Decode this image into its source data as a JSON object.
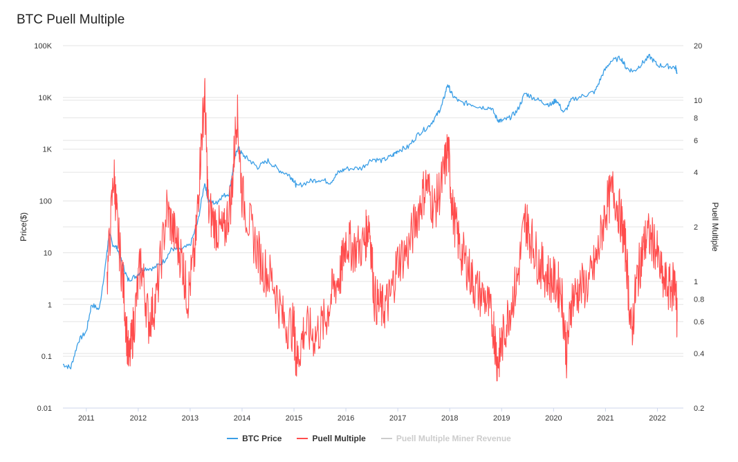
{
  "chart_data": {
    "type": "line",
    "title": "BTC Puell Multiple",
    "x_ticks": [
      "2011",
      "2012",
      "2013",
      "2014",
      "2015",
      "2016",
      "2017",
      "2018",
      "2019",
      "2020",
      "2021",
      "2022"
    ],
    "xlim": [
      2010.55,
      2022.5
    ],
    "y_left": {
      "label": "Price($)",
      "scale": "log",
      "lim": [
        0.01,
        100000
      ],
      "ticks": [
        0.01,
        0.1,
        1,
        10,
        100,
        1000,
        10000,
        100000
      ],
      "tick_labels": [
        "0.01",
        "0.1",
        "1",
        "10",
        "100",
        "1K",
        "10K",
        "100K"
      ]
    },
    "y_right": {
      "label": "Puell Multiple",
      "scale": "log",
      "lim": [
        0.2,
        20
      ],
      "ticks": [
        0.2,
        0.4,
        0.6,
        0.8,
        1,
        2,
        4,
        6,
        8,
        10,
        20
      ],
      "tick_labels": [
        "0.2",
        "0.4",
        "0.6",
        "0.8",
        "1",
        "2",
        "4",
        "6",
        "8",
        "10",
        "20"
      ]
    },
    "series": [
      {
        "name": "BTC Price",
        "color": "#3a9ee6",
        "axis": "left",
        "points": [
          [
            2010.55,
            0.07
          ],
          [
            2010.7,
            0.06
          ],
          [
            2010.85,
            0.2
          ],
          [
            2011.0,
            0.3
          ],
          [
            2011.1,
            1
          ],
          [
            2011.25,
            0.8
          ],
          [
            2011.4,
            10
          ],
          [
            2011.44,
            25
          ],
          [
            2011.5,
            15
          ],
          [
            2011.6,
            12
          ],
          [
            2011.7,
            6
          ],
          [
            2011.8,
            3
          ],
          [
            2011.95,
            3.5
          ],
          [
            2012.1,
            5
          ],
          [
            2012.3,
            5
          ],
          [
            2012.5,
            7
          ],
          [
            2012.65,
            12
          ],
          [
            2012.8,
            11
          ],
          [
            2013.0,
            14
          ],
          [
            2013.15,
            40
          ],
          [
            2013.28,
            230
          ],
          [
            2013.35,
            100
          ],
          [
            2013.5,
            90
          ],
          [
            2013.6,
            120
          ],
          [
            2013.75,
            140
          ],
          [
            2013.85,
            600
          ],
          [
            2013.92,
            1100
          ],
          [
            2014.0,
            800
          ],
          [
            2014.15,
            600
          ],
          [
            2014.3,
            450
          ],
          [
            2014.5,
            600
          ],
          [
            2014.7,
            400
          ],
          [
            2014.9,
            320
          ],
          [
            2015.0,
            250
          ],
          [
            2015.05,
            190
          ],
          [
            2015.3,
            240
          ],
          [
            2015.5,
            260
          ],
          [
            2015.7,
            230
          ],
          [
            2015.85,
            350
          ],
          [
            2016.0,
            420
          ],
          [
            2016.3,
            430
          ],
          [
            2016.5,
            650
          ],
          [
            2016.7,
            600
          ],
          [
            2016.9,
            750
          ],
          [
            2017.0,
            950
          ],
          [
            2017.2,
            1100
          ],
          [
            2017.4,
            2000
          ],
          [
            2017.6,
            2800
          ],
          [
            2017.75,
            4500
          ],
          [
            2017.85,
            7000
          ],
          [
            2017.96,
            18000
          ],
          [
            2018.05,
            11000
          ],
          [
            2018.2,
            8000
          ],
          [
            2018.4,
            7500
          ],
          [
            2018.6,
            6500
          ],
          [
            2018.8,
            6300
          ],
          [
            2018.92,
            3700
          ],
          [
            2019.0,
            3500
          ],
          [
            2019.15,
            4000
          ],
          [
            2019.3,
            5500
          ],
          [
            2019.45,
            12000
          ],
          [
            2019.6,
            10000
          ],
          [
            2019.8,
            8000
          ],
          [
            2019.95,
            7200
          ],
          [
            2020.05,
            9000
          ],
          [
            2020.2,
            5000
          ],
          [
            2020.35,
            9000
          ],
          [
            2020.6,
            11000
          ],
          [
            2020.8,
            13000
          ],
          [
            2020.95,
            29000
          ],
          [
            2021.1,
            50000
          ],
          [
            2021.3,
            58000
          ],
          [
            2021.4,
            37000
          ],
          [
            2021.55,
            32000
          ],
          [
            2021.7,
            45000
          ],
          [
            2021.85,
            62000
          ],
          [
            2022.0,
            42000
          ],
          [
            2022.2,
            40000
          ],
          [
            2022.35,
            38000
          ],
          [
            2022.38,
            30000
          ]
        ]
      },
      {
        "name": "Puell Multiple",
        "color": "#ff4d4d",
        "axis": "right",
        "points": [
          [
            2011.4,
            1.0
          ],
          [
            2011.53,
            4.0
          ],
          [
            2011.6,
            2.0
          ],
          [
            2011.72,
            0.9
          ],
          [
            2011.82,
            0.35
          ],
          [
            2011.92,
            0.6
          ],
          [
            2012.05,
            1.3
          ],
          [
            2012.2,
            0.6
          ],
          [
            2012.35,
            0.8
          ],
          [
            2012.55,
            2.5
          ],
          [
            2012.7,
            1.8
          ],
          [
            2012.85,
            1.3
          ],
          [
            2012.95,
            0.8
          ],
          [
            2013.1,
            1.5
          ],
          [
            2013.2,
            5.0
          ],
          [
            2013.28,
            11.0
          ],
          [
            2013.35,
            2.5
          ],
          [
            2013.5,
            2.0
          ],
          [
            2013.65,
            1.8
          ],
          [
            2013.8,
            3.0
          ],
          [
            2013.9,
            9.0
          ],
          [
            2014.0,
            3.0
          ],
          [
            2014.2,
            1.8
          ],
          [
            2014.4,
            1.2
          ],
          [
            2014.6,
            1.0
          ],
          [
            2014.8,
            0.6
          ],
          [
            2015.0,
            0.55
          ],
          [
            2015.05,
            0.35
          ],
          [
            2015.2,
            0.55
          ],
          [
            2015.4,
            0.5
          ],
          [
            2015.6,
            0.6
          ],
          [
            2015.75,
            0.9
          ],
          [
            2015.9,
            1.1
          ],
          [
            2016.0,
            1.7
          ],
          [
            2016.15,
            1.5
          ],
          [
            2016.35,
            1.6
          ],
          [
            2016.45,
            2.2
          ],
          [
            2016.55,
            0.8
          ],
          [
            2016.7,
            0.7
          ],
          [
            2016.85,
            0.8
          ],
          [
            2017.0,
            1.3
          ],
          [
            2017.2,
            1.5
          ],
          [
            2017.4,
            2.5
          ],
          [
            2017.55,
            3.5
          ],
          [
            2017.7,
            2.5
          ],
          [
            2017.85,
            3.5
          ],
          [
            2017.97,
            5.5
          ],
          [
            2018.05,
            2.5
          ],
          [
            2018.2,
            1.5
          ],
          [
            2018.35,
            1.2
          ],
          [
            2018.5,
            0.9
          ],
          [
            2018.7,
            0.8
          ],
          [
            2018.85,
            0.55
          ],
          [
            2018.92,
            0.35
          ],
          [
            2019.0,
            0.45
          ],
          [
            2019.15,
            0.7
          ],
          [
            2019.3,
            1.0
          ],
          [
            2019.45,
            2.2
          ],
          [
            2019.55,
            1.8
          ],
          [
            2019.7,
            1.3
          ],
          [
            2019.85,
            1.1
          ],
          [
            2020.0,
            1.0
          ],
          [
            2020.15,
            0.9
          ],
          [
            2020.25,
            0.4
          ],
          [
            2020.35,
            0.8
          ],
          [
            2020.5,
            0.9
          ],
          [
            2020.7,
            1.0
          ],
          [
            2020.85,
            1.4
          ],
          [
            2021.0,
            2.5
          ],
          [
            2021.15,
            3.2
          ],
          [
            2021.3,
            2.2
          ],
          [
            2021.4,
            1.4
          ],
          [
            2021.5,
            0.5
          ],
          [
            2021.6,
            1.0
          ],
          [
            2021.7,
            1.4
          ],
          [
            2021.8,
            1.8
          ],
          [
            2021.95,
            1.6
          ],
          [
            2022.1,
            1.0
          ],
          [
            2022.25,
            0.9
          ],
          [
            2022.35,
            1.0
          ],
          [
            2022.38,
            0.6
          ]
        ]
      },
      {
        "name": "Puell Multiple Miner Revenue",
        "color": "#cccccc",
        "axis": "right",
        "hidden": true,
        "points": []
      }
    ]
  },
  "legend": {
    "btc_price": "BTC Price",
    "puell_multiple": "Puell Multiple",
    "miner_revenue": "Puell Multiple Miner Revenue"
  }
}
